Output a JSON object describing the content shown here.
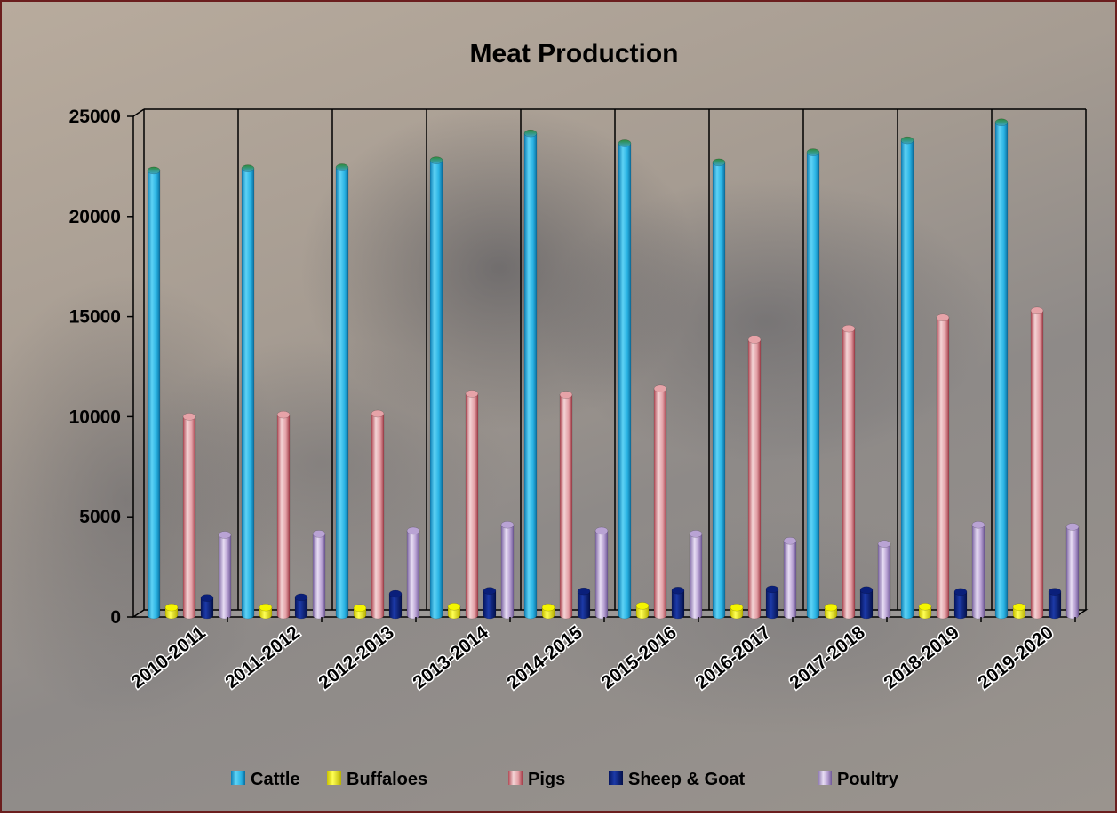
{
  "chart_data": {
    "type": "bar",
    "title": "Meat Production",
    "xlabel": "",
    "ylabel": "",
    "ylim": [
      0,
      25000
    ],
    "yticks": [
      0,
      5000,
      10000,
      15000,
      20000,
      25000
    ],
    "categories": [
      "2010-2011",
      "2011-2012",
      "2012-2013",
      "2013-2014",
      "2014-2015",
      "2015-2016",
      "2016-2017",
      "2017-2018",
      "2018-2019",
      "2019-2020"
    ],
    "series": [
      {
        "name": "Cattle",
        "values": [
          22300,
          22400,
          22450,
          22800,
          24150,
          23650,
          22700,
          23200,
          23800,
          24700
        ]
      },
      {
        "name": "Buffaloes",
        "values": [
          480,
          480,
          450,
          520,
          480,
          560,
          480,
          480,
          520,
          500
        ]
      },
      {
        "name": "Pigs",
        "values": [
          10000,
          10100,
          10150,
          11150,
          11100,
          11400,
          13850,
          14400,
          14950,
          15300
        ]
      },
      {
        "name": "Sheep & Goat",
        "values": [
          950,
          980,
          1150,
          1300,
          1280,
          1320,
          1380,
          1340,
          1250,
          1260
        ]
      },
      {
        "name": "Poultry",
        "values": [
          4100,
          4150,
          4300,
          4600,
          4300,
          4150,
          3800,
          3650,
          4600,
          4500
        ]
      }
    ],
    "colors": [
      "#29b6e6",
      "#f5f500",
      "#e6a3a8",
      "#0a1f7a",
      "#b9a3d4"
    ],
    "grid": "vertical-category-dividers",
    "legend_position": "bottom"
  }
}
